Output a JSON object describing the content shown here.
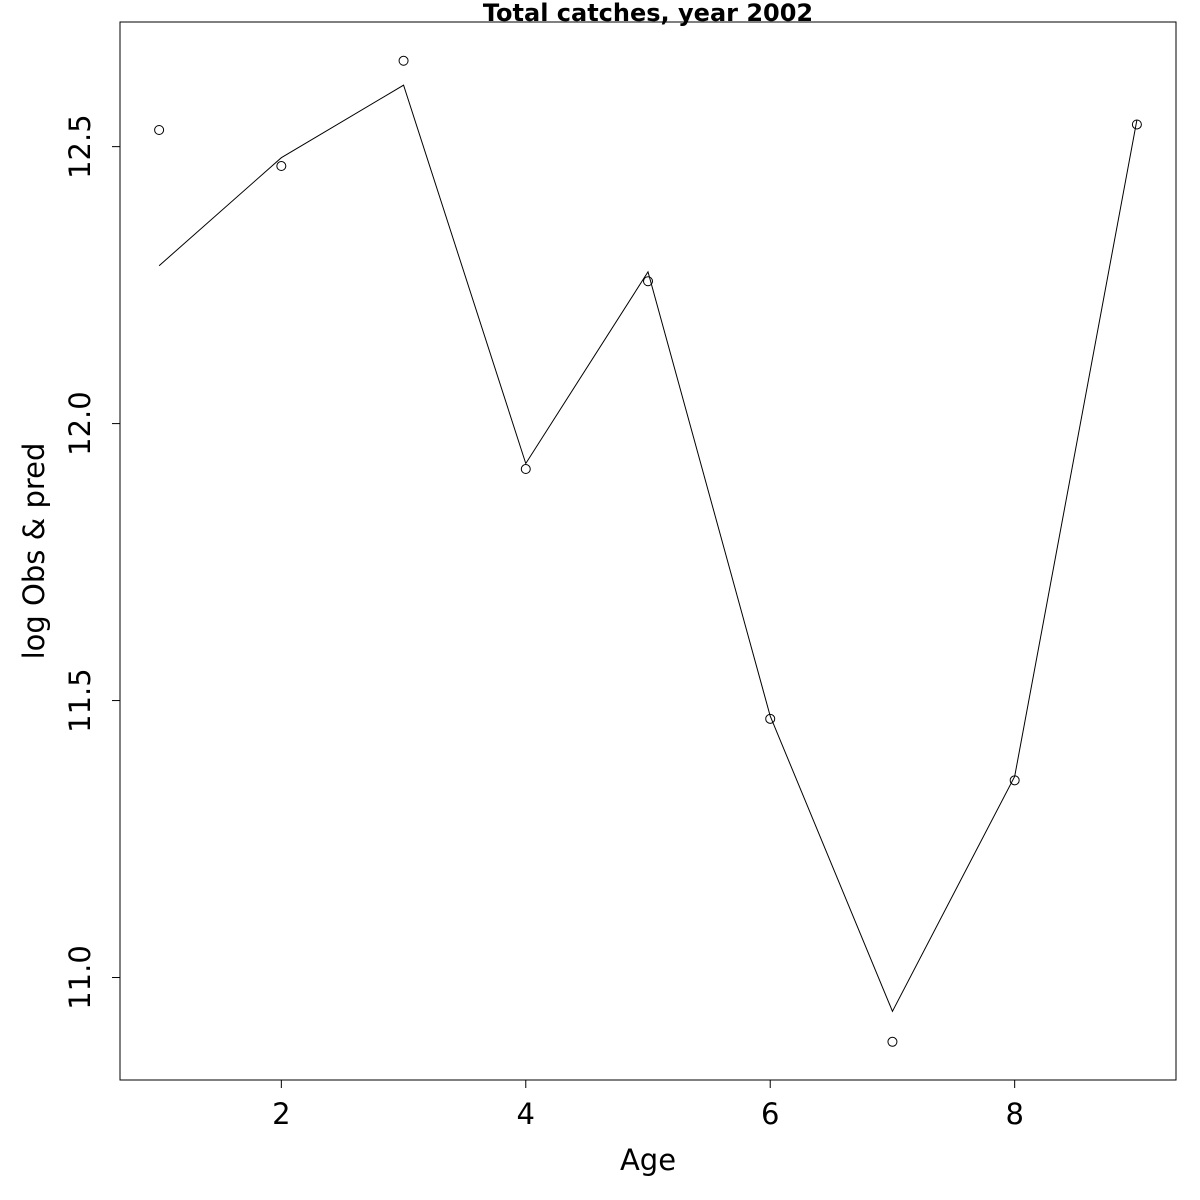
{
  "chart_data": {
    "type": "line",
    "title": "Total catches, year 2002",
    "xlabel": "Age",
    "ylabel": "log Obs & pred",
    "xlim": [
      0.68,
      9.32
    ],
    "ylim": [
      10.815,
      12.725
    ],
    "x_ticks": [
      2,
      4,
      6,
      8
    ],
    "x_tick_labels": [
      "2",
      "4",
      "6",
      "8"
    ],
    "y_ticks": [
      11.0,
      11.5,
      12.0,
      12.5
    ],
    "y_tick_labels": [
      "11.0",
      "11.5",
      "12.0",
      "12.5"
    ],
    "grid": false,
    "series": [
      {
        "style": "points",
        "x": [
          1,
          2,
          3,
          4,
          5,
          6,
          7,
          8,
          9
        ],
        "values": [
          12.53,
          12.465,
          12.655,
          11.918,
          12.257,
          11.467,
          10.884,
          11.356,
          12.54
        ]
      },
      {
        "style": "line",
        "x": [
          1,
          2,
          3,
          4,
          5,
          6,
          7,
          8,
          9
        ],
        "values": [
          12.285,
          12.48,
          12.611,
          11.928,
          12.274,
          11.472,
          10.939,
          11.363,
          12.548
        ]
      }
    ]
  }
}
